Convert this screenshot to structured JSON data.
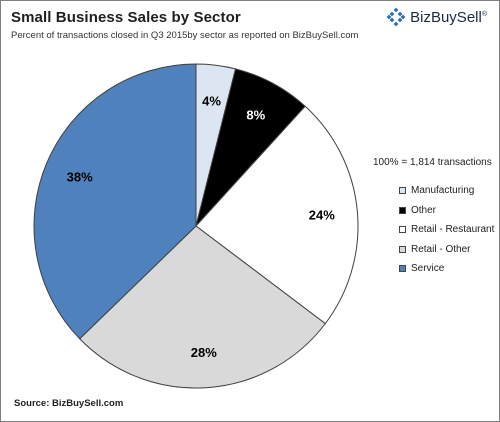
{
  "header": {
    "title": "Small Business Sales by Sector",
    "subtitle": "Percent of transactions closed in Q3 2015by sector as reported on BizBuySell.com"
  },
  "brand": {
    "name": "BizBuySell",
    "trademark": "®",
    "icon": "bizbuysell-logo-icon",
    "icon_color": "#2f6fb5"
  },
  "legend_note": "100% = 1,814 transactions",
  "source": "Source:  BizBuySell.com",
  "chart_data": {
    "type": "pie",
    "title": "Small Business Sales by Sector",
    "subtitle": "Percent of transactions closed in Q3 2015by sector as reported on BizBuySell.com",
    "total_note": "100% = 1,814 transactions",
    "legend_position": "right",
    "slices": [
      {
        "label": "Manufacturing",
        "value": 4,
        "display": "4%",
        "color": "#dce6f2",
        "text_color": "#000000"
      },
      {
        "label": "Other",
        "value": 8,
        "display": "8%",
        "color": "#000000",
        "text_color": "#ffffff"
      },
      {
        "label": "Retail - Restaurant",
        "value": 24,
        "display": "24%",
        "color": "#ffffff",
        "text_color": "#000000"
      },
      {
        "label": "Retail - Other",
        "value": 28,
        "display": "28%",
        "color": "#d9d9d9",
        "text_color": "#000000"
      },
      {
        "label": "Service",
        "value": 38,
        "display": "38%",
        "color": "#4f81bd",
        "text_color": "#000000"
      }
    ]
  }
}
